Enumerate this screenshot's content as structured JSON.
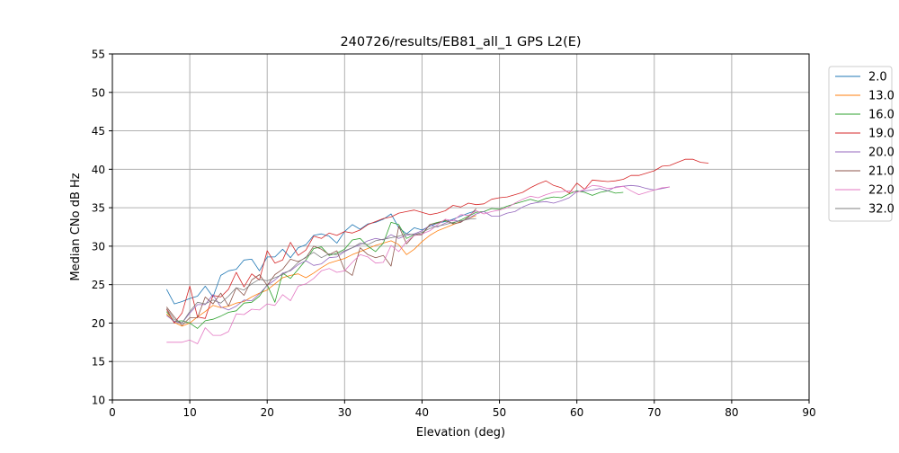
{
  "chart_data": {
    "type": "line",
    "title": "240726/results/EB81_all_1 GPS L2(E)",
    "xlabel": "Elevation (deg)",
    "ylabel": "Median CNo dB Hz",
    "xlim": [
      0,
      90
    ],
    "ylim": [
      10,
      55
    ],
    "xticks": [
      0,
      10,
      20,
      30,
      40,
      50,
      60,
      70,
      80,
      90
    ],
    "yticks": [
      10,
      15,
      20,
      25,
      30,
      35,
      40,
      45,
      50,
      55
    ],
    "grid": true,
    "legend_position": "outside-right-top",
    "series": [
      {
        "name": "2.0",
        "color": "#1f77b4",
        "x": [
          7,
          8,
          9,
          10,
          11,
          12,
          13,
          14,
          15,
          16,
          17,
          18,
          19,
          20,
          21,
          22,
          23,
          24,
          25,
          26,
          27,
          28,
          29,
          30,
          31,
          32,
          33,
          34,
          35,
          36,
          37,
          38,
          39,
          40,
          41,
          42,
          43,
          44,
          45,
          46,
          47
        ],
        "y": [
          24.4,
          22.5,
          22.8,
          23.2,
          23.5,
          24.8,
          23.4,
          26.2,
          26.8,
          27.0,
          28.2,
          28.3,
          26.8,
          28.6,
          28.6,
          29.6,
          28.5,
          29.8,
          30.2,
          31.4,
          31.6,
          31.3,
          30.4,
          31.9,
          32.8,
          32.2,
          32.9,
          33.1,
          33.5,
          34.2,
          32.4,
          31.6,
          32.4,
          32.1,
          32.6,
          33.0,
          33.2,
          33.5,
          33.9,
          34.3,
          34.6
        ]
      },
      {
        "name": "13.0",
        "color": "#ff7f0e",
        "x": [
          7,
          8,
          9,
          10,
          11,
          12,
          13,
          14,
          15,
          16,
          17,
          18,
          19,
          20,
          21,
          22,
          23,
          24,
          25,
          26,
          27,
          28,
          29,
          30,
          31,
          32,
          33,
          34,
          35,
          36,
          37,
          38,
          39,
          40,
          41,
          42,
          43,
          44,
          45,
          46,
          47
        ],
        "y": [
          21.2,
          20.1,
          19.6,
          20.0,
          20.8,
          21.5,
          22.3,
          22.0,
          22.2,
          22.6,
          22.8,
          23.4,
          23.9,
          24.3,
          25.1,
          25.9,
          26.2,
          26.4,
          25.9,
          26.5,
          27.2,
          27.8,
          28.1,
          28.4,
          28.9,
          29.3,
          29.7,
          30.1,
          30.4,
          30.7,
          30.2,
          28.9,
          29.6,
          30.6,
          31.4,
          32.0,
          32.4,
          32.8,
          33.2,
          33.6,
          34.0
        ]
      },
      {
        "name": "16.0",
        "color": "#2ca02c",
        "x": [
          7,
          8,
          9,
          10,
          11,
          12,
          13,
          14,
          15,
          16,
          17,
          18,
          19,
          20,
          21,
          22,
          23,
          24,
          25,
          26,
          27,
          28,
          29,
          30,
          31,
          32,
          33,
          34,
          35,
          36,
          37,
          38,
          39,
          40,
          41,
          42,
          43,
          44,
          45,
          46,
          47,
          48,
          49,
          50,
          51,
          52,
          53,
          54,
          55,
          56,
          57,
          58,
          59,
          60,
          61,
          62,
          63,
          64,
          65,
          66
        ],
        "y": [
          21.5,
          20.2,
          20.3,
          20.0,
          19.3,
          20.3,
          20.5,
          20.9,
          21.4,
          21.6,
          22.6,
          22.7,
          23.5,
          25.0,
          22.7,
          26.5,
          25.8,
          27.0,
          28.2,
          29.7,
          29.9,
          28.8,
          29.1,
          29.6,
          30.8,
          31.0,
          30.0,
          29.3,
          30.4,
          33.1,
          32.8,
          31.0,
          31.5,
          31.6,
          32.8,
          33.1,
          33.3,
          33.0,
          33.4,
          33.9,
          34.4,
          34.5,
          34.9,
          34.8,
          35.2,
          35.5,
          35.8,
          36.1,
          35.8,
          36.2,
          36.4,
          36.3,
          36.8,
          37.2,
          37.0,
          36.6,
          37.0,
          37.2,
          36.9,
          37.0
        ]
      },
      {
        "name": "19.0",
        "color": "#d62728",
        "x": [
          7,
          8,
          9,
          10,
          11,
          12,
          13,
          14,
          15,
          16,
          17,
          18,
          19,
          20,
          21,
          22,
          23,
          24,
          25,
          26,
          27,
          28,
          29,
          30,
          31,
          32,
          33,
          34,
          35,
          36,
          37,
          38,
          39,
          40,
          41,
          42,
          43,
          44,
          45,
          46,
          47,
          48,
          49,
          50,
          51,
          52,
          53,
          54,
          55,
          56,
          57,
          58,
          59,
          60,
          61,
          62,
          63,
          64,
          65,
          66,
          67,
          68,
          69,
          70,
          71,
          72,
          73,
          74,
          75,
          76,
          77
        ],
        "y": [
          21.8,
          20.0,
          21.3,
          24.8,
          20.8,
          20.6,
          23.6,
          23.4,
          24.4,
          26.6,
          24.7,
          26.4,
          25.6,
          29.4,
          27.8,
          28.2,
          30.5,
          28.8,
          29.5,
          31.3,
          31.0,
          31.7,
          31.4,
          31.9,
          31.7,
          32.1,
          32.8,
          33.2,
          33.6,
          33.8,
          34.3,
          34.5,
          34.7,
          34.4,
          34.1,
          34.3,
          34.6,
          35.3,
          35.1,
          35.6,
          35.4,
          35.5,
          36.1,
          36.3,
          36.4,
          36.7,
          37.0,
          37.6,
          38.1,
          38.5,
          37.9,
          37.6,
          36.9,
          38.2,
          37.4,
          38.6,
          38.5,
          38.4,
          38.5,
          38.7,
          39.2,
          39.2,
          39.5,
          39.8,
          40.4,
          40.5,
          40.9,
          41.3,
          41.3,
          40.9,
          40.8
        ]
      },
      {
        "name": "20.0",
        "color": "#9467bd",
        "x": [
          7,
          8,
          9,
          10,
          11,
          12,
          13,
          14,
          15,
          16,
          17,
          18,
          19,
          20,
          21,
          22,
          23,
          24,
          25,
          26,
          27,
          28,
          29,
          30,
          31,
          32,
          33,
          34,
          35,
          36,
          37,
          38,
          39,
          40,
          41,
          42,
          43,
          44,
          45,
          46,
          47,
          48,
          49,
          50,
          51,
          52,
          53,
          54,
          55,
          56,
          57,
          58,
          59,
          60,
          61,
          62,
          63,
          64,
          65,
          66,
          67,
          68,
          69,
          70,
          71,
          72
        ],
        "y": [
          21.0,
          20.2,
          20.0,
          21.3,
          22.4,
          22.4,
          23.7,
          22.1,
          21.7,
          22.2,
          23.0,
          22.9,
          23.8,
          24.9,
          25.6,
          26.5,
          26.8,
          27.6,
          28.1,
          27.5,
          27.7,
          28.5,
          28.6,
          29.3,
          29.8,
          30.2,
          30.7,
          31.0,
          30.8,
          31.5,
          31.0,
          31.4,
          31.6,
          32.0,
          32.7,
          32.5,
          33.0,
          33.4,
          33.2,
          33.6,
          34.2,
          34.5,
          33.9,
          33.9,
          34.3,
          34.5,
          35.1,
          35.5,
          35.7,
          35.8,
          35.6,
          35.9,
          36.3,
          37.1,
          37.2,
          37.3,
          37.5,
          37.2,
          37.7,
          37.8,
          37.9,
          37.8,
          37.5,
          37.3,
          37.5,
          37.7
        ]
      },
      {
        "name": "21.0",
        "color": "#8c564b",
        "x": [
          7,
          8,
          9,
          10,
          11,
          12,
          13,
          14,
          15,
          16,
          17,
          18,
          19,
          20,
          21,
          22,
          23,
          24,
          25,
          26,
          27,
          28,
          29,
          30,
          31,
          32,
          33,
          34,
          35,
          36,
          37,
          38,
          39,
          40,
          41,
          42,
          43,
          44,
          45,
          46,
          47
        ],
        "y": [
          22.1,
          20.8,
          19.7,
          20.7,
          20.7,
          23.4,
          22.5,
          23.9,
          22.2,
          24.6,
          23.6,
          25.6,
          26.3,
          24.9,
          26.3,
          27.0,
          28.3,
          28.0,
          28.5,
          30.0,
          29.6,
          28.9,
          29.4,
          26.9,
          26.2,
          29.8,
          28.9,
          28.5,
          28.8,
          27.4,
          32.6,
          30.3,
          31.4,
          31.5,
          32.8,
          33.0,
          33.4,
          32.9,
          33.1,
          33.8,
          34.9
        ]
      },
      {
        "name": "22.0",
        "color": "#e377c2",
        "x": [
          7,
          8,
          9,
          10,
          11,
          12,
          13,
          14,
          15,
          16,
          17,
          18,
          19,
          20,
          21,
          22,
          23,
          24,
          25,
          26,
          27,
          28,
          29,
          30,
          31,
          32,
          33,
          34,
          35,
          36,
          37,
          38,
          39,
          40,
          41,
          42,
          43,
          44,
          45,
          46,
          47,
          48,
          49,
          50,
          51,
          52,
          53,
          54,
          55,
          56,
          57,
          58,
          59,
          60,
          61,
          62,
          63,
          64,
          65,
          66,
          67,
          68,
          69,
          70,
          71,
          72
        ],
        "y": [
          17.5,
          17.5,
          17.5,
          17.8,
          17.3,
          19.4,
          18.4,
          18.4,
          18.9,
          21.2,
          21.1,
          21.8,
          21.7,
          22.5,
          22.3,
          23.7,
          22.9,
          24.8,
          25.1,
          25.8,
          26.8,
          27.1,
          26.6,
          26.8,
          27.9,
          28.9,
          28.6,
          27.8,
          27.9,
          30.1,
          29.3,
          30.6,
          31.4,
          31.6,
          32.0,
          32.8,
          33.5,
          33.3,
          34.1,
          34.0,
          34.6,
          34.2,
          34.5,
          34.7,
          35.0,
          35.6,
          36.1,
          36.5,
          36.3,
          36.7,
          37.0,
          37.1,
          37.2,
          37.0,
          37.4,
          37.9,
          37.8,
          37.5,
          37.6,
          37.8,
          37.2,
          36.7,
          37.0,
          37.3,
          37.6,
          37.7
        ]
      },
      {
        "name": "32.0",
        "color": "#7f7f7f",
        "x": [
          7,
          8,
          9,
          10,
          11,
          12,
          13,
          14,
          15,
          16,
          17,
          18,
          19,
          20,
          21,
          22,
          23,
          24,
          25,
          26,
          27,
          28,
          29,
          30,
          31,
          32,
          33,
          34,
          35,
          36,
          37,
          38,
          39,
          40,
          41,
          42,
          43,
          44,
          45,
          46,
          47
        ],
        "y": [
          21.9,
          20.5,
          20.0,
          21.5,
          22.7,
          22.5,
          23.0,
          22.6,
          23.5,
          24.6,
          24.3,
          25.1,
          25.7,
          25.5,
          25.9,
          26.3,
          26.9,
          27.9,
          28.6,
          29.2,
          28.5,
          29.0,
          28.9,
          29.4,
          29.8,
          30.4,
          30.2,
          30.7,
          30.9,
          31.1,
          31.3,
          31.6,
          31.5,
          31.8,
          32.3,
          32.6,
          32.8,
          33.1,
          33.3,
          33.5,
          33.6
        ]
      }
    ]
  }
}
